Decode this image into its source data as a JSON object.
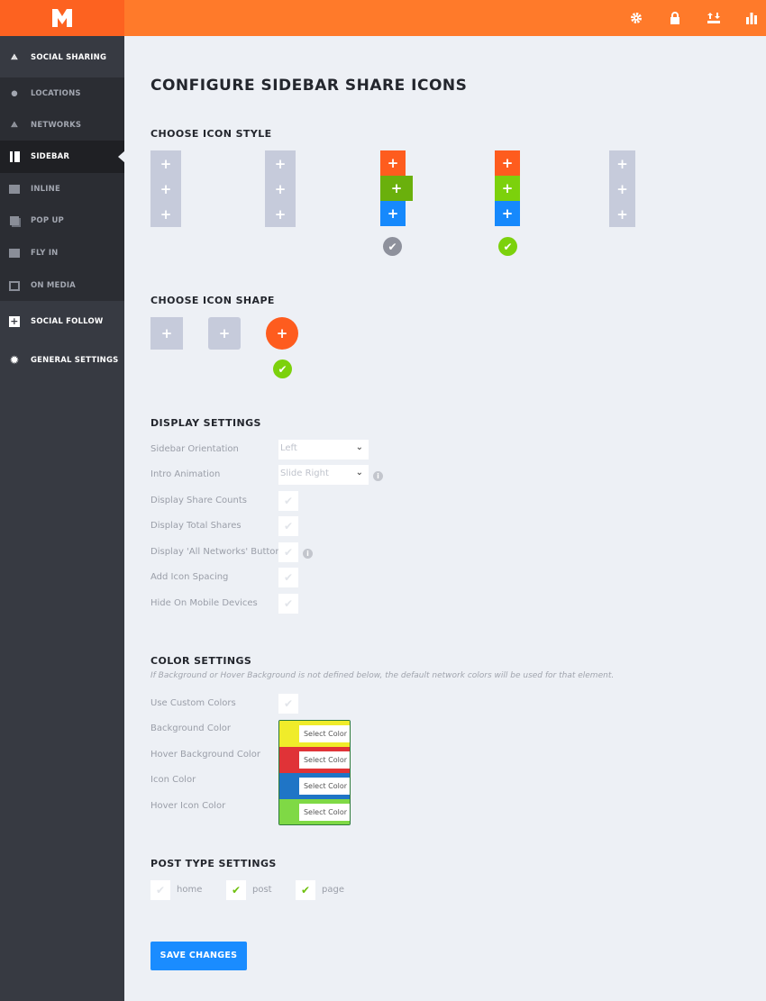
{
  "header": {
    "logo": "M",
    "icons": [
      "gear-icon",
      "lock-icon",
      "import-export-icon",
      "stats-icon"
    ]
  },
  "sidebar": {
    "items": [
      {
        "label": "SOCIAL SHARING",
        "icon": "share-icon"
      },
      {
        "label": "LOCATIONS",
        "icon": "map-pin-icon"
      },
      {
        "label": "NETWORKS",
        "icon": "share-icon"
      },
      {
        "label": "SIDEBAR",
        "icon": "sidebar-icon",
        "active": true
      },
      {
        "label": "INLINE",
        "icon": "inline-icon"
      },
      {
        "label": "POP UP",
        "icon": "popup-icon"
      },
      {
        "label": "FLY IN",
        "icon": "flyin-icon"
      },
      {
        "label": "ON MEDIA",
        "icon": "image-icon"
      },
      {
        "label": "SOCIAL FOLLOW",
        "icon": "plus-square-icon"
      },
      {
        "label": "GENERAL SETTINGS",
        "icon": "gear-icon"
      }
    ]
  },
  "main": {
    "title": "CONFIGURE SIDEBAR SHARE ICONS",
    "icon_style": {
      "heading": "CHOOSE ICON STYLE",
      "selected_index": 3,
      "colors": {
        "orange": "#fe5c1e",
        "green": "#7cd10c",
        "dark_green": "#6ab00c",
        "blue": "#1689fc",
        "gray": "#c6cbdb"
      }
    },
    "icon_shape": {
      "heading": "CHOOSE ICON SHAPE",
      "selected_index": 2
    },
    "display": {
      "heading": "DISPLAY SETTINGS",
      "rows": [
        {
          "label": "Sidebar Orientation",
          "value": "Left"
        },
        {
          "label": "Intro Animation",
          "value": "Slide Right"
        },
        {
          "label": "Display Share Counts"
        },
        {
          "label": "Display Total Shares"
        },
        {
          "label": "Display 'All Networks' Button"
        },
        {
          "label": "Add Icon Spacing"
        },
        {
          "label": "Hide On Mobile Devices"
        }
      ]
    },
    "color": {
      "heading": "COLOR SETTINGS",
      "note": "If Background or Hover Background is not defined below, the default network colors will be used for that element.",
      "use_custom": "Use Custom Colors",
      "button": "Select Color",
      "rows": [
        {
          "label": "Background Color",
          "color": "#f0ec2a"
        },
        {
          "label": "Hover Background Color",
          "color": "#e03337"
        },
        {
          "label": "Icon Color",
          "color": "#1f75c6"
        },
        {
          "label": "Hover Icon Color",
          "color": "#7fd945"
        }
      ]
    },
    "post_types": {
      "heading": "POST TYPE SETTINGS",
      "items": [
        {
          "label": "home",
          "checked": false
        },
        {
          "label": "post",
          "checked": true
        },
        {
          "label": "page",
          "checked": true
        }
      ]
    },
    "save": "SAVE CHANGES"
  }
}
